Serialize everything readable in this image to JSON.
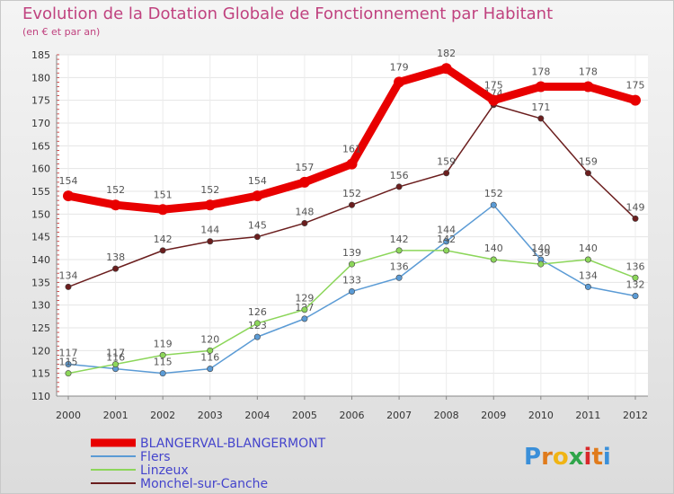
{
  "chart_data": {
    "type": "line",
    "title": "Evolution de la Dotation Globale de Fonctionnement par Habitant",
    "subtitle": "(en € et par an)",
    "xlabel": "",
    "ylabel": "",
    "categories": [
      "2000",
      "2001",
      "2002",
      "2003",
      "2004",
      "2005",
      "2006",
      "2007",
      "2008",
      "2009",
      "2010",
      "2011",
      "2012"
    ],
    "ylim": [
      110,
      185
    ],
    "yticks": [
      110,
      115,
      120,
      125,
      130,
      135,
      140,
      145,
      150,
      155,
      160,
      165,
      170,
      175,
      180,
      185
    ],
    "grid": true,
    "legend": "bottom-left",
    "series": [
      {
        "name": "BLANGERVAL-BLANGERMONT",
        "color": "#e80000",
        "values": [
          154,
          152,
          151,
          152,
          154,
          157,
          161,
          179,
          182,
          175,
          178,
          178,
          175
        ]
      },
      {
        "name": "Flers",
        "color": "#5b9bd5",
        "values": [
          117,
          116,
          115,
          116,
          123,
          127,
          133,
          136,
          144,
          152,
          140,
          134,
          132
        ]
      },
      {
        "name": "Linzeux",
        "color": "#8cd65a",
        "values": [
          115,
          117,
          119,
          120,
          126,
          129,
          139,
          142,
          142,
          140,
          139,
          140,
          136
        ]
      },
      {
        "name": "Monchel-sur-Canche",
        "color": "#6b1e1e",
        "values": [
          134,
          138,
          142,
          144,
          145,
          148,
          152,
          156,
          159,
          174,
          171,
          159,
          149
        ]
      }
    ]
  },
  "logo": {
    "letters": [
      "P",
      "r",
      "o",
      "x",
      "i",
      "t",
      "i"
    ],
    "colors": [
      "#3a8fd9",
      "#e07b1c",
      "#f0b414",
      "#2fa54a",
      "#d8282b",
      "#e07b1c",
      "#3a8fd9"
    ]
  }
}
